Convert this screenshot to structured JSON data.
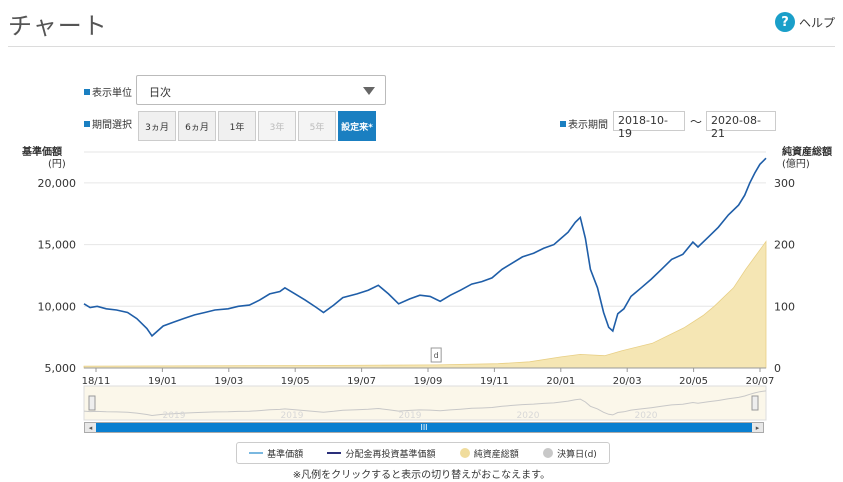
{
  "page": {
    "title": "チャート",
    "help_label": "ヘルプ",
    "help_icon_text": "?"
  },
  "controls": {
    "unit_label": "表示単位",
    "unit_value": "日次",
    "period_label": "期間選択",
    "period_buttons": [
      {
        "label": "3ヵ月",
        "state": "normal"
      },
      {
        "label": "6ヵ月",
        "state": "normal"
      },
      {
        "label": "1年",
        "state": "normal"
      },
      {
        "label": "3年",
        "state": "disabled"
      },
      {
        "label": "5年",
        "state": "disabled"
      },
      {
        "label": "設定来*",
        "state": "active"
      }
    ],
    "display_period_label": "表示期間",
    "date_from": "2018-10-19",
    "date_separator": "～",
    "date_to": "2020-08-21"
  },
  "colors": {
    "nav_line": "#1f5ea8",
    "net_assets_fill": "#f5e6b4",
    "accent": "#1a7fc1",
    "grid": "#e6e6e6"
  },
  "chart_data": {
    "type": "line",
    "left_axis_title": "基準価額",
    "left_axis_unit": "(円)",
    "right_axis_title": "純資産総額",
    "right_axis_unit": "(億円)",
    "y_left_ticks": [
      "20,000",
      "15,000",
      "10,000",
      "5,000"
    ],
    "y_left_values": [
      20000,
      15000,
      10000,
      5000
    ],
    "ylim_left": [
      5000,
      22500
    ],
    "y_right_ticks": [
      "300",
      "200",
      "100",
      "0"
    ],
    "y_right_values": [
      300,
      200,
      100,
      0
    ],
    "ylim_right": [
      0,
      350
    ],
    "x_ticks": [
      "18/11",
      "19/01",
      "19/03",
      "19/05",
      "19/07",
      "19/09",
      "19/11",
      "20/01",
      "20/03",
      "20/05",
      "20/07"
    ],
    "series": [
      {
        "name": "基準価額",
        "axis": "left",
        "points": [
          [
            "2018-10-19",
            10200
          ],
          [
            "2018-10-25",
            9900
          ],
          [
            "2018-11-01",
            10000
          ],
          [
            "2018-11-10",
            9800
          ],
          [
            "2018-11-20",
            9700
          ],
          [
            "2018-12-01",
            9500
          ],
          [
            "2018-12-10",
            9000
          ],
          [
            "2018-12-20",
            8200
          ],
          [
            "2018-12-25",
            7600
          ],
          [
            "2019-01-05",
            8400
          ],
          [
            "2019-01-15",
            8700
          ],
          [
            "2019-01-25",
            9000
          ],
          [
            "2019-02-05",
            9300
          ],
          [
            "2019-02-15",
            9500
          ],
          [
            "2019-02-25",
            9700
          ],
          [
            "2019-03-10",
            9800
          ],
          [
            "2019-03-20",
            10000
          ],
          [
            "2019-03-31",
            10100
          ],
          [
            "2019-04-10",
            10500
          ],
          [
            "2019-04-20",
            11000
          ],
          [
            "2019-04-30",
            11200
          ],
          [
            "2019-05-05",
            11500
          ],
          [
            "2019-05-15",
            11000
          ],
          [
            "2019-05-25",
            10500
          ],
          [
            "2019-06-05",
            9900
          ],
          [
            "2019-06-12",
            9500
          ],
          [
            "2019-06-22",
            10100
          ],
          [
            "2019-07-01",
            10700
          ],
          [
            "2019-07-15",
            11000
          ],
          [
            "2019-07-26",
            11300
          ],
          [
            "2019-08-05",
            11700
          ],
          [
            "2019-08-15",
            11000
          ],
          [
            "2019-08-25",
            10200
          ],
          [
            "2019-09-05",
            10600
          ],
          [
            "2019-09-15",
            10900
          ],
          [
            "2019-09-25",
            10800
          ],
          [
            "2019-10-05",
            10400
          ],
          [
            "2019-10-15",
            10900
          ],
          [
            "2019-10-25",
            11300
          ],
          [
            "2019-11-05",
            11800
          ],
          [
            "2019-11-15",
            12000
          ],
          [
            "2019-11-25",
            12300
          ],
          [
            "2019-12-05",
            13000
          ],
          [
            "2019-12-15",
            13500
          ],
          [
            "2019-12-25",
            14000
          ],
          [
            "2020-01-05",
            14300
          ],
          [
            "2020-01-15",
            14700
          ],
          [
            "2020-01-25",
            15000
          ],
          [
            "2020-02-01",
            15500
          ],
          [
            "2020-02-08",
            16000
          ],
          [
            "2020-02-15",
            16800
          ],
          [
            "2020-02-20",
            17200
          ],
          [
            "2020-02-25",
            15500
          ],
          [
            "2020-03-01",
            13000
          ],
          [
            "2020-03-08",
            11500
          ],
          [
            "2020-03-14",
            9500
          ],
          [
            "2020-03-19",
            8300
          ],
          [
            "2020-03-23",
            8000
          ],
          [
            "2020-03-28",
            9400
          ],
          [
            "2020-04-03",
            9800
          ],
          [
            "2020-04-10",
            10800
          ],
          [
            "2020-04-20",
            11500
          ],
          [
            "2020-04-30",
            12200
          ],
          [
            "2020-05-10",
            13000
          ],
          [
            "2020-05-20",
            13800
          ],
          [
            "2020-05-31",
            14200
          ],
          [
            "2020-06-10",
            15200
          ],
          [
            "2020-06-15",
            14800
          ],
          [
            "2020-06-25",
            15600
          ],
          [
            "2020-07-05",
            16400
          ],
          [
            "2020-07-15",
            17400
          ],
          [
            "2020-07-25",
            18200
          ],
          [
            "2020-07-31",
            19000
          ],
          [
            "2020-08-05",
            20000
          ],
          [
            "2020-08-10",
            20800
          ],
          [
            "2020-08-15",
            21500
          ],
          [
            "2020-08-21",
            22000
          ]
        ]
      },
      {
        "name": "純資産総額",
        "axis": "right",
        "type": "area",
        "points": [
          [
            "2018-10-19",
            3
          ],
          [
            "2019-06-01",
            4
          ],
          [
            "2019-10-01",
            5
          ],
          [
            "2019-12-01",
            7
          ],
          [
            "2020-01-01",
            10
          ],
          [
            "2020-02-01",
            18
          ],
          [
            "2020-02-20",
            22
          ],
          [
            "2020-03-15",
            20
          ],
          [
            "2020-04-01",
            28
          ],
          [
            "2020-05-01",
            40
          ],
          [
            "2020-06-01",
            65
          ],
          [
            "2020-06-20",
            85
          ],
          [
            "2020-07-01",
            100
          ],
          [
            "2020-07-20",
            130
          ],
          [
            "2020-08-01",
            160
          ],
          [
            "2020-08-10",
            180
          ],
          [
            "2020-08-21",
            205
          ]
        ]
      }
    ],
    "settlement_marker": {
      "label": "d",
      "date": "2019-10-01"
    },
    "navigator_year_labels": [
      "2019",
      "2019",
      "2019",
      "2020",
      "2020"
    ]
  },
  "legend": {
    "items": [
      {
        "label": "基準価額",
        "color": "#7ab8e0",
        "kind": "line"
      },
      {
        "label": "分配金再投資基準価額",
        "color": "#2a2f7a",
        "kind": "line"
      },
      {
        "label": "純資産総額",
        "color": "#f0dc9c",
        "kind": "dot"
      },
      {
        "label": "決算日(d)",
        "color": "#c8c8c8",
        "kind": "dot"
      }
    ],
    "note": "※凡例をクリックすると表示の切り替えがおこなえます。"
  },
  "scrollbar": {
    "grip": "III",
    "left_arrow": "◂",
    "right_arrow": "▸"
  }
}
